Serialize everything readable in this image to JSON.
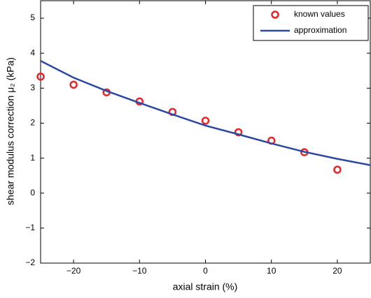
{
  "chart_data": {
    "type": "line",
    "xlabel": "axial strain (%)",
    "ylabel": "shear modulus correction  μ₂ (kPa)",
    "xlim": [
      -25,
      25
    ],
    "xticks": [
      {
        "value": -20,
        "label": "−20"
      },
      {
        "value": -10,
        "label": "−10"
      },
      0,
      10,
      20
    ],
    "ylim": [
      -2,
      5.5
    ],
    "yticks": [
      {
        "value": -2,
        "label": "−2"
      },
      {
        "value": -1,
        "label": "−1"
      },
      0,
      1,
      2,
      3,
      4,
      5
    ],
    "legend": "upper right",
    "series": [
      {
        "name": "known values",
        "color": "#e8262a",
        "style": "markers",
        "x": [
          -25,
          -20,
          -15,
          -10,
          -5,
          0,
          5,
          10,
          15,
          20
        ],
        "values": [
          3.33,
          3.1,
          2.88,
          2.62,
          2.32,
          2.07,
          1.74,
          1.5,
          1.17,
          0.67
        ]
      },
      {
        "name": "approximation",
        "color": "#2b4a9e",
        "style": "line",
        "x": [
          -25,
          -20,
          -15,
          -10,
          -5,
          0,
          5,
          10,
          15,
          20,
          25
        ],
        "values": [
          3.78,
          3.3,
          2.92,
          2.58,
          2.25,
          1.93,
          1.68,
          1.42,
          1.18,
          0.98,
          0.8
        ]
      }
    ]
  }
}
